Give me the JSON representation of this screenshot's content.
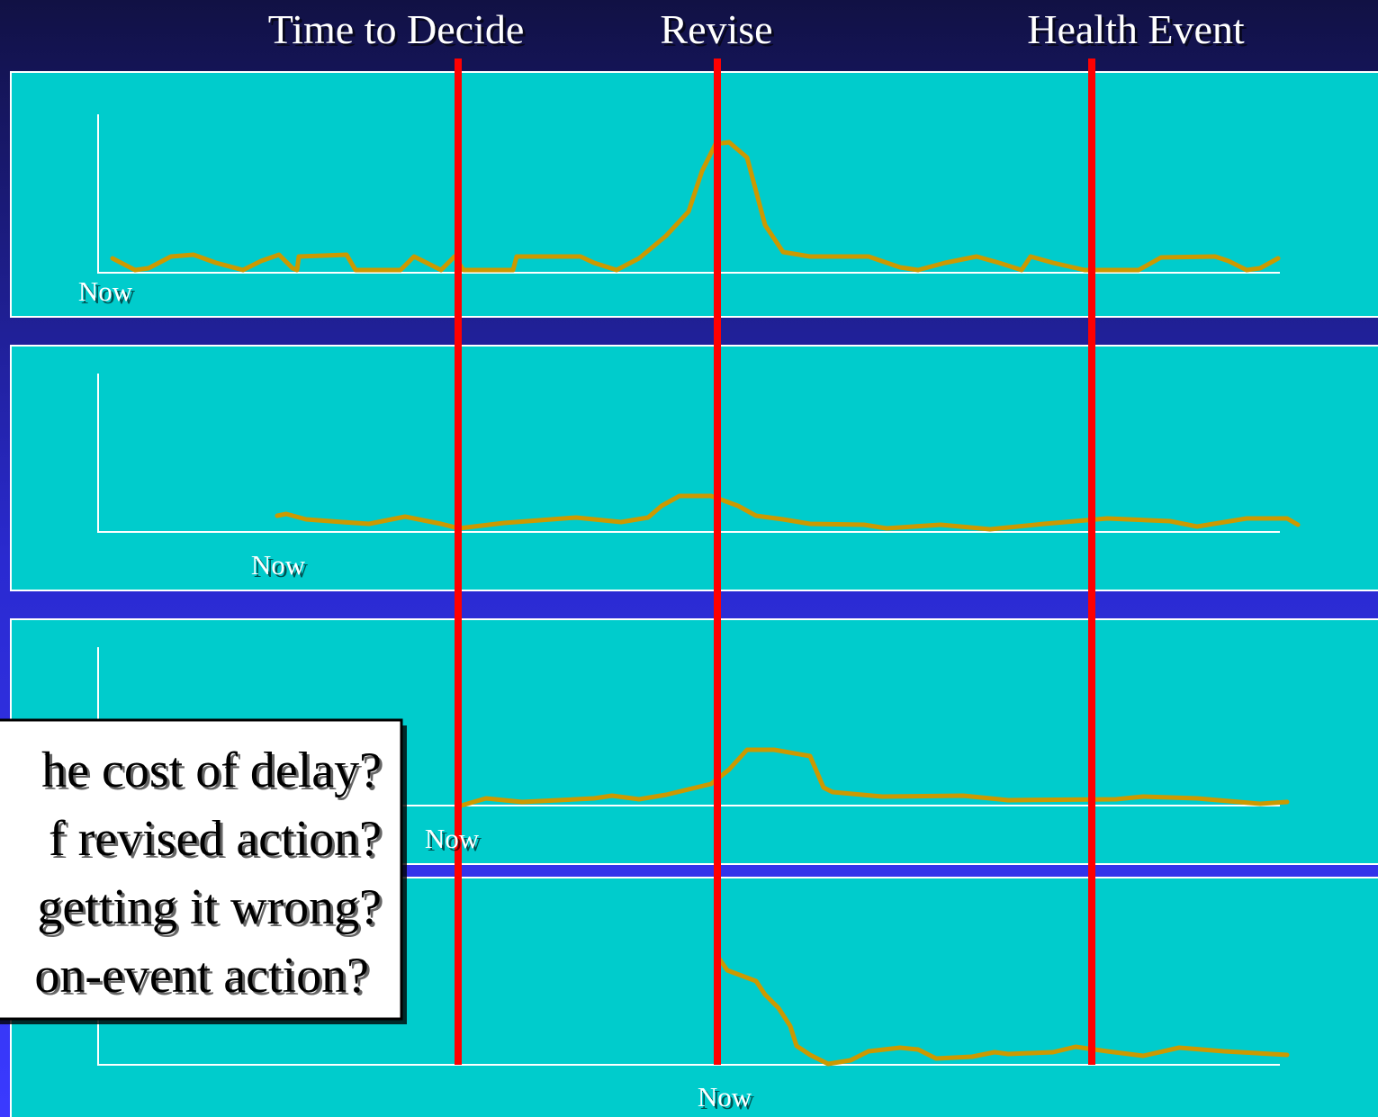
{
  "header": {
    "labels": [
      "Time to Decide",
      "Revise",
      "Health Event"
    ]
  },
  "panels": [
    {
      "axis_label": "Now"
    },
    {
      "axis_label": "Now"
    },
    {
      "axis_label": "Now"
    },
    {
      "axis_label": "Now"
    }
  ],
  "callout": {
    "lines": [
      "he cost of delay?",
      "f revised action?",
      "getting it wrong?",
      "on-event action?"
    ]
  }
}
